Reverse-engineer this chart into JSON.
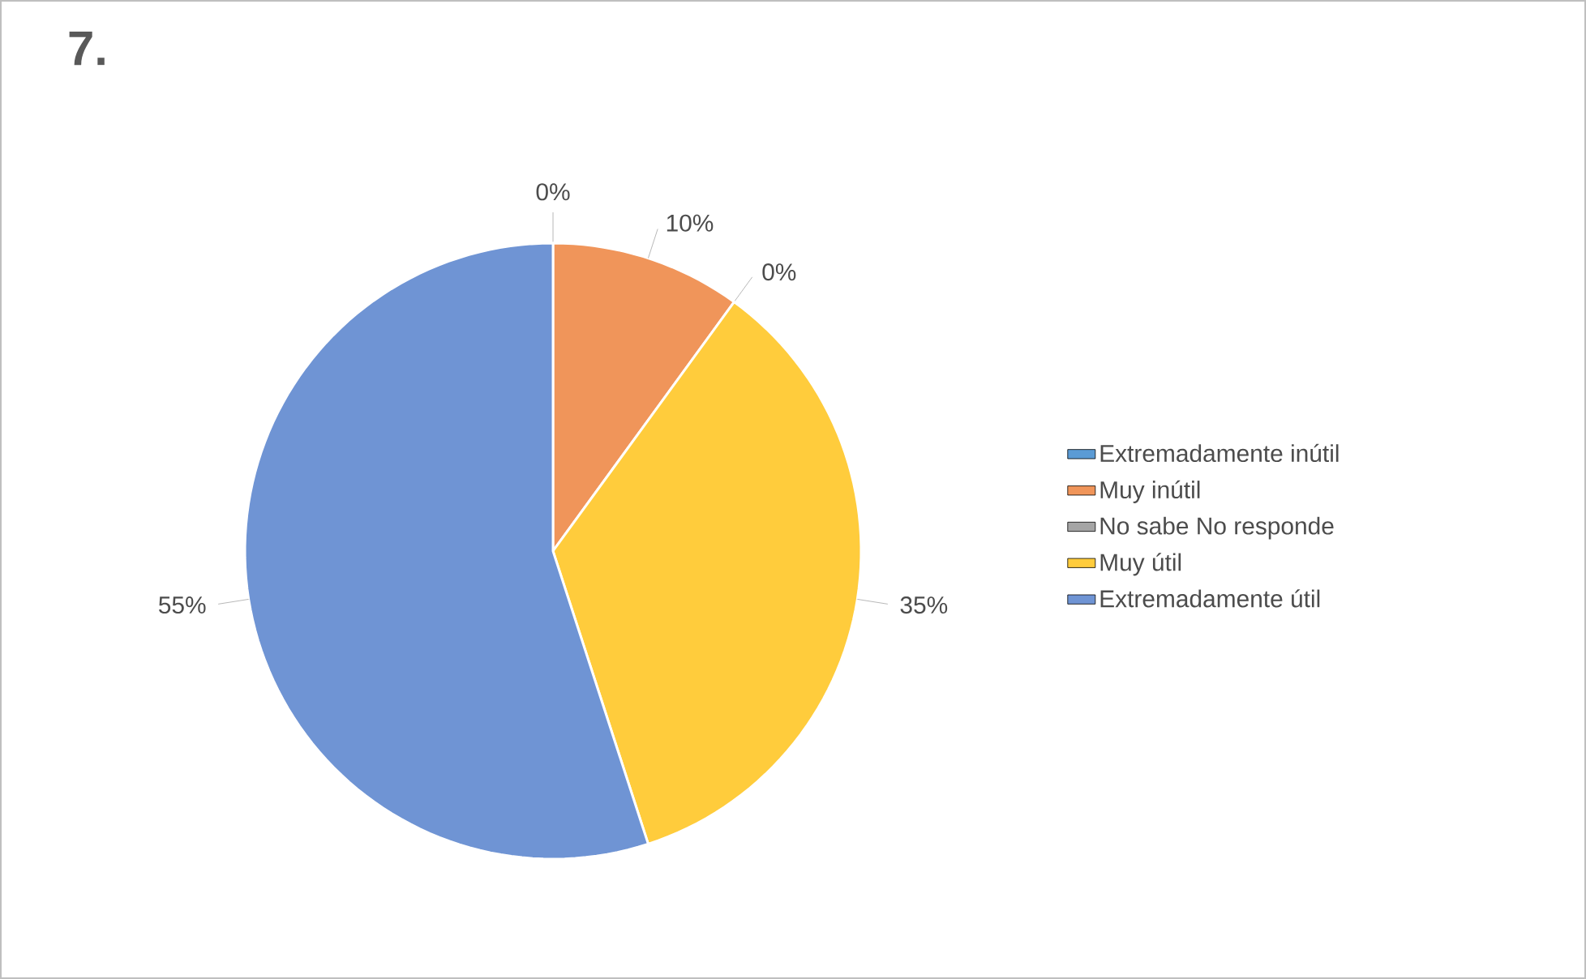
{
  "chart_data": {
    "type": "pie",
    "title": "7.",
    "categories": [
      "Extremadamente inútil",
      "Muy inútil",
      "No sabe No responde",
      "Muy útil",
      "Extremadamente útil"
    ],
    "values": [
      0,
      10,
      0,
      35,
      55
    ],
    "colors": [
      "#5b9bd5",
      "#f0955a",
      "#a5a5a5",
      "#ffcc3c",
      "#6f94d4"
    ],
    "value_labels": [
      "0%",
      "10%",
      "0%",
      "35%",
      "55%"
    ],
    "legend": "right"
  }
}
